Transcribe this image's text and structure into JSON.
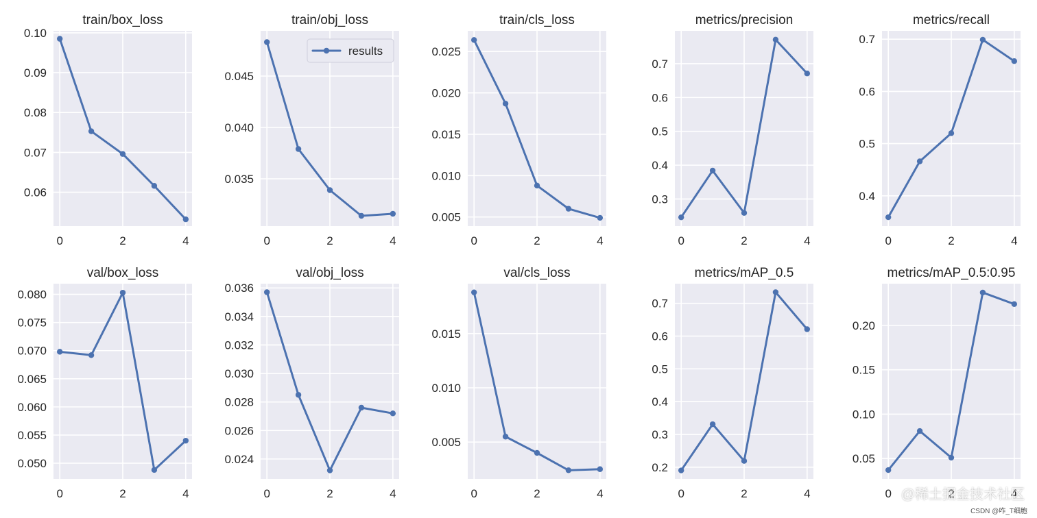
{
  "chart_data": [
    {
      "type": "line",
      "title": "train/box_loss",
      "x": [
        0,
        1,
        2,
        3,
        4
      ],
      "series": [
        {
          "name": "results",
          "values": [
            0.0985,
            0.0753,
            0.0696,
            0.0616,
            0.0532
          ]
        }
      ],
      "xlim": [
        -0.2,
        4.2
      ],
      "ylim": [
        0.0515,
        0.1005
      ],
      "xticks": [
        0,
        2,
        4
      ],
      "xticklabels": [
        "0",
        "2",
        "4"
      ],
      "yticks": [
        0.06,
        0.07,
        0.08,
        0.09,
        0.1
      ],
      "yticklabels": [
        "0.06",
        "0.07",
        "0.08",
        "0.09",
        "0.10"
      ],
      "legend": false
    },
    {
      "type": "line",
      "title": "train/obj_loss",
      "x": [
        0,
        1,
        2,
        3,
        4
      ],
      "series": [
        {
          "name": "results",
          "values": [
            0.0483,
            0.0379,
            0.0339,
            0.0314,
            0.0316
          ]
        }
      ],
      "xlim": [
        -0.2,
        4.2
      ],
      "ylim": [
        0.0304,
        0.0494
      ],
      "xticks": [
        0,
        2,
        4
      ],
      "xticklabels": [
        "0",
        "2",
        "4"
      ],
      "yticks": [
        0.035,
        0.04,
        0.045
      ],
      "yticklabels": [
        "0.035",
        "0.040",
        "0.045"
      ],
      "legend": true,
      "legend_position": "upper-right"
    },
    {
      "type": "line",
      "title": "train/cls_loss",
      "x": [
        0,
        1,
        2,
        3,
        4
      ],
      "series": [
        {
          "name": "results",
          "values": [
            0.0264,
            0.0187,
            0.0088,
            0.006,
            0.0049
          ]
        }
      ],
      "xlim": [
        -0.2,
        4.2
      ],
      "ylim": [
        0.0039,
        0.0275
      ],
      "xticks": [
        0,
        2,
        4
      ],
      "xticklabels": [
        "0",
        "2",
        "4"
      ],
      "yticks": [
        0.005,
        0.01,
        0.015,
        0.02,
        0.025
      ],
      "yticklabels": [
        "0.005",
        "0.010",
        "0.015",
        "0.020",
        "0.025"
      ],
      "legend": false
    },
    {
      "type": "line",
      "title": "metrics/precision",
      "x": [
        0,
        1,
        2,
        3,
        4
      ],
      "series": [
        {
          "name": "results",
          "values": [
            0.246,
            0.384,
            0.259,
            0.771,
            0.671
          ]
        }
      ],
      "xlim": [
        -0.2,
        4.2
      ],
      "ylim": [
        0.22,
        0.797
      ],
      "xticks": [
        0,
        2,
        4
      ],
      "xticklabels": [
        "0",
        "2",
        "4"
      ],
      "yticks": [
        0.3,
        0.4,
        0.5,
        0.6,
        0.7
      ],
      "yticklabels": [
        "0.3",
        "0.4",
        "0.5",
        "0.6",
        "0.7"
      ],
      "legend": false
    },
    {
      "type": "line",
      "title": "metrics/recall",
      "x": [
        0,
        1,
        2,
        3,
        4
      ],
      "series": [
        {
          "name": "results",
          "values": [
            0.359,
            0.466,
            0.52,
            0.699,
            0.658
          ]
        }
      ],
      "xlim": [
        -0.2,
        4.2
      ],
      "ylim": [
        0.342,
        0.716
      ],
      "xticks": [
        0,
        2,
        4
      ],
      "xticklabels": [
        "0",
        "2",
        "4"
      ],
      "yticks": [
        0.4,
        0.5,
        0.6,
        0.7
      ],
      "yticklabels": [
        "0.4",
        "0.5",
        "0.6",
        "0.7"
      ],
      "legend": false
    },
    {
      "type": "line",
      "title": "val/box_loss",
      "x": [
        0,
        1,
        2,
        3,
        4
      ],
      "series": [
        {
          "name": "results",
          "values": [
            0.0698,
            0.0692,
            0.0803,
            0.0488,
            0.054
          ]
        }
      ],
      "xlim": [
        -0.2,
        4.2
      ],
      "ylim": [
        0.0472,
        0.0819
      ],
      "xticks": [
        0,
        2,
        4
      ],
      "xticklabels": [
        "0",
        "2",
        "4"
      ],
      "yticks": [
        0.05,
        0.055,
        0.06,
        0.065,
        0.07,
        0.075,
        0.08
      ],
      "yticklabels": [
        "0.050",
        "0.055",
        "0.060",
        "0.065",
        "0.070",
        "0.075",
        "0.080"
      ],
      "legend": false
    },
    {
      "type": "line",
      "title": "val/obj_loss",
      "x": [
        0,
        1,
        2,
        3,
        4
      ],
      "series": [
        {
          "name": "results",
          "values": [
            0.0357,
            0.0285,
            0.0232,
            0.0276,
            0.0272
          ]
        }
      ],
      "xlim": [
        -0.2,
        4.2
      ],
      "ylim": [
        0.0226,
        0.0363
      ],
      "xticks": [
        0,
        2,
        4
      ],
      "xticklabels": [
        "0",
        "2",
        "4"
      ],
      "yticks": [
        0.024,
        0.026,
        0.028,
        0.03,
        0.032,
        0.034,
        0.036
      ],
      "yticklabels": [
        "0.024",
        "0.026",
        "0.028",
        "0.030",
        "0.032",
        "0.034",
        "0.036"
      ],
      "legend": false
    },
    {
      "type": "line",
      "title": "val/cls_loss",
      "x": [
        0,
        1,
        2,
        3,
        4
      ],
      "series": [
        {
          "name": "results",
          "values": [
            0.0188,
            0.0055,
            0.004,
            0.0024,
            0.0025
          ]
        }
      ],
      "xlim": [
        -0.2,
        4.2
      ],
      "ylim": [
        0.0016,
        0.0196
      ],
      "xticks": [
        0,
        2,
        4
      ],
      "xticklabels": [
        "0",
        "2",
        "4"
      ],
      "yticks": [
        0.005,
        0.01,
        0.015
      ],
      "yticklabels": [
        "0.005",
        "0.010",
        "0.015"
      ],
      "legend": false
    },
    {
      "type": "line",
      "title": "metrics/mAP_0.5",
      "x": [
        0,
        1,
        2,
        3,
        4
      ],
      "series": [
        {
          "name": "results",
          "values": [
            0.19,
            0.331,
            0.219,
            0.734,
            0.621
          ]
        }
      ],
      "xlim": [
        -0.2,
        4.2
      ],
      "ylim": [
        0.164,
        0.76
      ],
      "xticks": [
        0,
        2,
        4
      ],
      "xticklabels": [
        "0",
        "2",
        "4"
      ],
      "yticks": [
        0.2,
        0.3,
        0.4,
        0.5,
        0.6,
        0.7
      ],
      "yticklabels": [
        "0.2",
        "0.3",
        "0.4",
        "0.5",
        "0.6",
        "0.7"
      ],
      "legend": false
    },
    {
      "type": "line",
      "title": "metrics/mAP_0.5:0.95",
      "x": [
        0,
        1,
        2,
        3,
        4
      ],
      "series": [
        {
          "name": "results",
          "values": [
            0.037,
            0.081,
            0.051,
            0.237,
            0.224
          ]
        }
      ],
      "xlim": [
        -0.2,
        4.2
      ],
      "ylim": [
        0.027,
        0.247
      ],
      "xticks": [
        0,
        2,
        4
      ],
      "xticklabels": [
        "0",
        "2",
        "4"
      ],
      "yticks": [
        0.05,
        0.1,
        0.15,
        0.2
      ],
      "yticklabels": [
        "0.05",
        "0.10",
        "0.15",
        "0.20"
      ],
      "legend": false
    }
  ],
  "legend_label": "results",
  "watermark": "@稀土掘金技术社区",
  "watermark_sub": "CSDN @咋_T细胞",
  "colors": {
    "line": "#4c72b0",
    "axes_bg": "#eaeaf2",
    "grid": "#ffffff",
    "text": "#262626"
  }
}
